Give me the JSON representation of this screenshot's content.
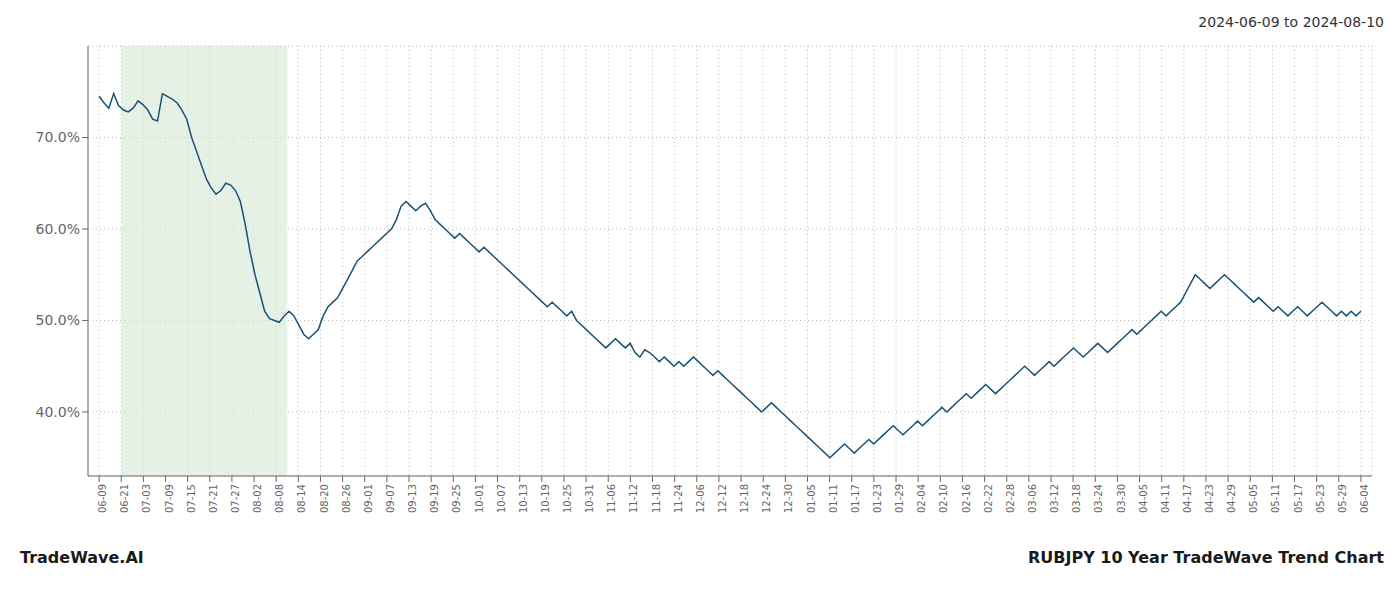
{
  "chart_data": {
    "type": "line",
    "title": "2024-06-09 to 2024-08-10",
    "footer_left": "TradeWave.AI",
    "footer_right": "RUBJPY 10 Year TradeWave Trend Chart",
    "color": "#1a5276",
    "grid": true,
    "highlight": {
      "x_start": 1,
      "x_end": 8.5,
      "color": "#d5e8d4"
    },
    "xlim": [
      -0.5,
      57.5
    ],
    "xticks": [
      {
        "value": 0,
        "label": "06-09"
      },
      {
        "value": 1,
        "label": "06-21"
      },
      {
        "value": 2,
        "label": "07-03"
      },
      {
        "value": 3,
        "label": "07-09"
      },
      {
        "value": 4,
        "label": "07-15"
      },
      {
        "value": 5,
        "label": "07-21"
      },
      {
        "value": 6,
        "label": "07-27"
      },
      {
        "value": 7,
        "label": "08-02"
      },
      {
        "value": 8,
        "label": "08-08"
      },
      {
        "value": 9,
        "label": "08-14"
      },
      {
        "value": 10,
        "label": "08-20"
      },
      {
        "value": 11,
        "label": "08-26"
      },
      {
        "value": 12,
        "label": "09-01"
      },
      {
        "value": 13,
        "label": "09-07"
      },
      {
        "value": 14,
        "label": "09-13"
      },
      {
        "value": 15,
        "label": "09-19"
      },
      {
        "value": 16,
        "label": "09-25"
      },
      {
        "value": 17,
        "label": "10-01"
      },
      {
        "value": 18,
        "label": "10-07"
      },
      {
        "value": 19,
        "label": "10-13"
      },
      {
        "value": 20,
        "label": "10-19"
      },
      {
        "value": 21,
        "label": "10-25"
      },
      {
        "value": 22,
        "label": "10-31"
      },
      {
        "value": 23,
        "label": "11-06"
      },
      {
        "value": 24,
        "label": "11-12"
      },
      {
        "value": 25,
        "label": "11-18"
      },
      {
        "value": 26,
        "label": "11-24"
      },
      {
        "value": 27,
        "label": "12-06"
      },
      {
        "value": 28,
        "label": "12-12"
      },
      {
        "value": 29,
        "label": "12-18"
      },
      {
        "value": 30,
        "label": "12-24"
      },
      {
        "value": 31,
        "label": "12-30"
      },
      {
        "value": 32,
        "label": "01-05"
      },
      {
        "value": 33,
        "label": "01-11"
      },
      {
        "value": 34,
        "label": "01-17"
      },
      {
        "value": 35,
        "label": "01-23"
      },
      {
        "value": 36,
        "label": "01-29"
      },
      {
        "value": 37,
        "label": "02-04"
      },
      {
        "value": 38,
        "label": "02-10"
      },
      {
        "value": 39,
        "label": "02-16"
      },
      {
        "value": 40,
        "label": "02-22"
      },
      {
        "value": 41,
        "label": "02-28"
      },
      {
        "value": 42,
        "label": "03-06"
      },
      {
        "value": 43,
        "label": "03-12"
      },
      {
        "value": 44,
        "label": "03-18"
      },
      {
        "value": 45,
        "label": "03-24"
      },
      {
        "value": 46,
        "label": "03-30"
      },
      {
        "value": 47,
        "label": "04-05"
      },
      {
        "value": 48,
        "label": "04-11"
      },
      {
        "value": 49,
        "label": "04-17"
      },
      {
        "value": 50,
        "label": "04-23"
      },
      {
        "value": 51,
        "label": "04-29"
      },
      {
        "value": 52,
        "label": "05-05"
      },
      {
        "value": 53,
        "label": "05-11"
      },
      {
        "value": 54,
        "label": "05-17"
      },
      {
        "value": 55,
        "label": "05-23"
      },
      {
        "value": 56,
        "label": "05-29"
      },
      {
        "value": 57,
        "label": "06-04"
      }
    ],
    "ylim": [
      33,
      80
    ],
    "yticks": [
      {
        "value": 40.0,
        "label": "40.0%"
      },
      {
        "value": 50.0,
        "label": "50.0%"
      },
      {
        "value": 60.0,
        "label": "60.0%"
      },
      {
        "value": 70.0,
        "label": "70.0%"
      }
    ],
    "values": [
      74.5,
      73.8,
      73.2,
      74.8,
      73.5,
      73.0,
      72.8,
      73.2,
      74.0,
      73.6,
      73.0,
      72.0,
      71.8,
      74.8,
      74.5,
      74.2,
      73.8,
      73.0,
      72.0,
      70.0,
      68.5,
      67.0,
      65.5,
      64.5,
      63.8,
      64.2,
      65.0,
      64.8,
      64.2,
      63.0,
      60.5,
      57.5,
      55.0,
      53.0,
      51.0,
      50.2,
      50.0,
      49.8,
      50.5,
      51.0,
      50.5,
      49.5,
      48.5,
      48.0,
      48.5,
      49.0,
      50.5,
      51.5,
      52.0,
      52.5,
      53.5,
      54.5,
      55.5,
      56.5,
      57.0,
      57.5,
      58.0,
      58.5,
      59.0,
      59.5,
      60.0,
      61.0,
      62.5,
      63.0,
      62.5,
      62.0,
      62.5,
      62.8,
      62.0,
      61.0,
      60.5,
      60.0,
      59.5,
      59.0,
      59.5,
      59.0,
      58.5,
      58.0,
      57.5,
      58.0,
      57.5,
      57.0,
      56.5,
      56.0,
      55.5,
      55.0,
      54.5,
      54.0,
      53.5,
      53.0,
      52.5,
      52.0,
      51.5,
      52.0,
      51.5,
      51.0,
      50.5,
      51.0,
      50.0,
      49.5,
      49.0,
      48.5,
      48.0,
      47.5,
      47.0,
      47.5,
      48.0,
      47.5,
      47.0,
      47.5,
      46.5,
      46.0,
      46.8,
      46.5,
      46.0,
      45.5,
      46.0,
      45.5,
      45.0,
      45.5,
      45.0,
      45.5,
      46.0,
      45.5,
      45.0,
      44.5,
      44.0,
      44.5,
      44.0,
      43.5,
      43.0,
      42.5,
      42.0,
      41.5,
      41.0,
      40.5,
      40.0,
      40.5,
      41.0,
      40.5,
      40.0,
      39.5,
      39.0,
      38.5,
      38.0,
      37.5,
      37.0,
      36.5,
      36.0,
      35.5,
      35.0,
      35.5,
      36.0,
      36.5,
      36.0,
      35.5,
      36.0,
      36.5,
      37.0,
      36.5,
      37.0,
      37.5,
      38.0,
      38.5,
      38.0,
      37.5,
      38.0,
      38.5,
      39.0,
      38.5,
      39.0,
      39.5,
      40.0,
      40.5,
      40.0,
      40.5,
      41.0,
      41.5,
      42.0,
      41.5,
      42.0,
      42.5,
      43.0,
      42.5,
      42.0,
      42.5,
      43.0,
      43.5,
      44.0,
      44.5,
      45.0,
      44.5,
      44.0,
      44.5,
      45.0,
      45.5,
      45.0,
      45.5,
      46.0,
      46.5,
      47.0,
      46.5,
      46.0,
      46.5,
      47.0,
      47.5,
      47.0,
      46.5,
      47.0,
      47.5,
      48.0,
      48.5,
      49.0,
      48.5,
      49.0,
      49.5,
      50.0,
      50.5,
      51.0,
      50.5,
      51.0,
      51.5,
      52.0,
      53.0,
      54.0,
      55.0,
      54.5,
      54.0,
      53.5,
      54.0,
      54.5,
      55.0,
      54.5,
      54.0,
      53.5,
      53.0,
      52.5,
      52.0,
      52.5,
      52.0,
      51.5,
      51.0,
      51.5,
      51.0,
      50.5,
      51.0,
      51.5,
      51.0,
      50.5,
      51.0,
      51.5,
      52.0,
      51.5,
      51.0,
      50.5,
      51.0,
      50.5,
      51.0,
      50.5,
      51.0
    ]
  }
}
